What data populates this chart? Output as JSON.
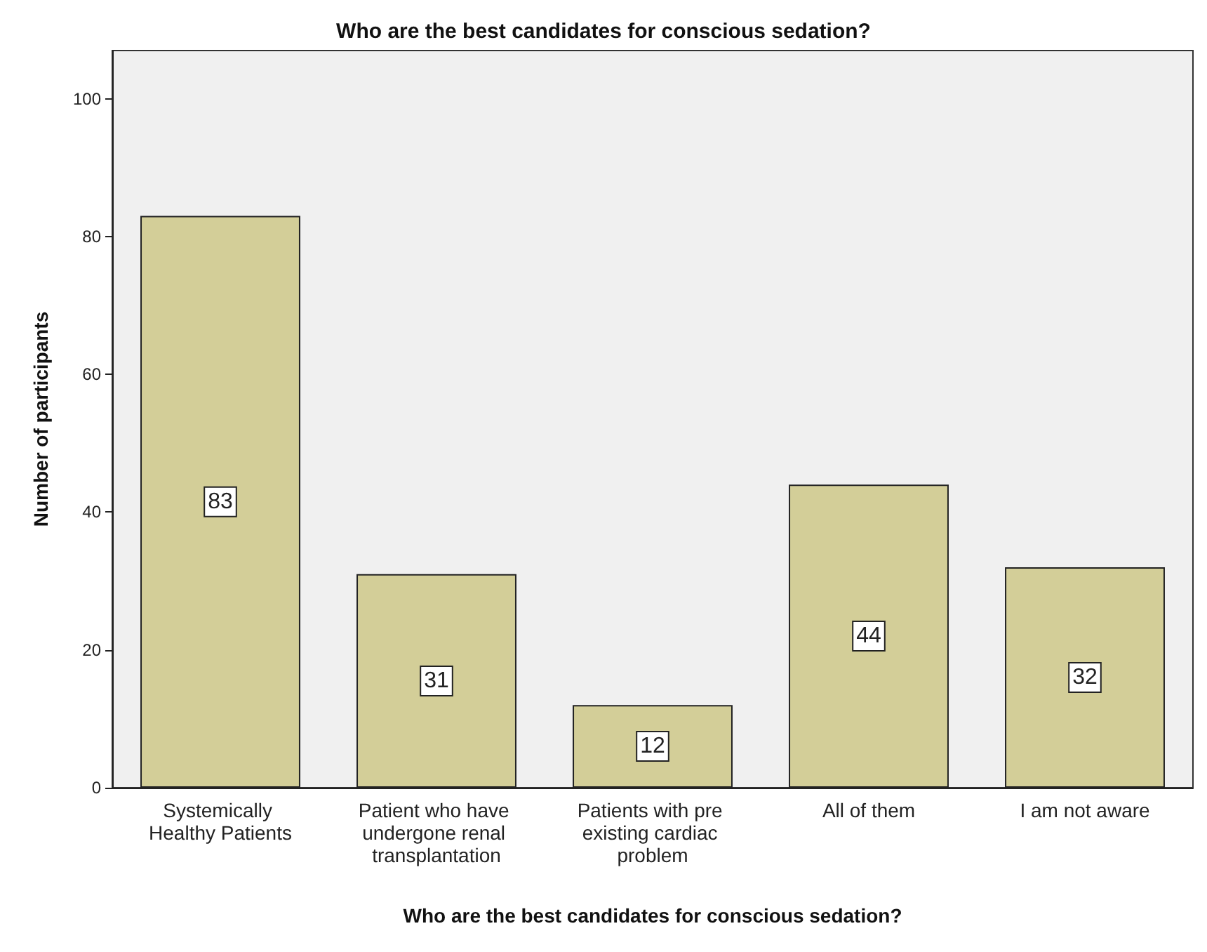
{
  "chart_data": {
    "type": "bar",
    "title": "Who are the best candidates for conscious sedation?",
    "xlabel": "Who are the best candidates for conscious sedation?",
    "ylabel": "Number of participants",
    "categories": [
      "Systemically Healthy Patients",
      "Patient who have undergone renal transplantation",
      "Patients with pre existing cardiac problem",
      "All of them",
      "I am not aware"
    ],
    "values": [
      83,
      31,
      12,
      44,
      32
    ],
    "color": "#d3ce98",
    "ylim": [
      0,
      107
    ],
    "yticks": [
      0,
      20,
      40,
      60,
      80,
      100
    ],
    "grid": false,
    "data_labels": true
  }
}
